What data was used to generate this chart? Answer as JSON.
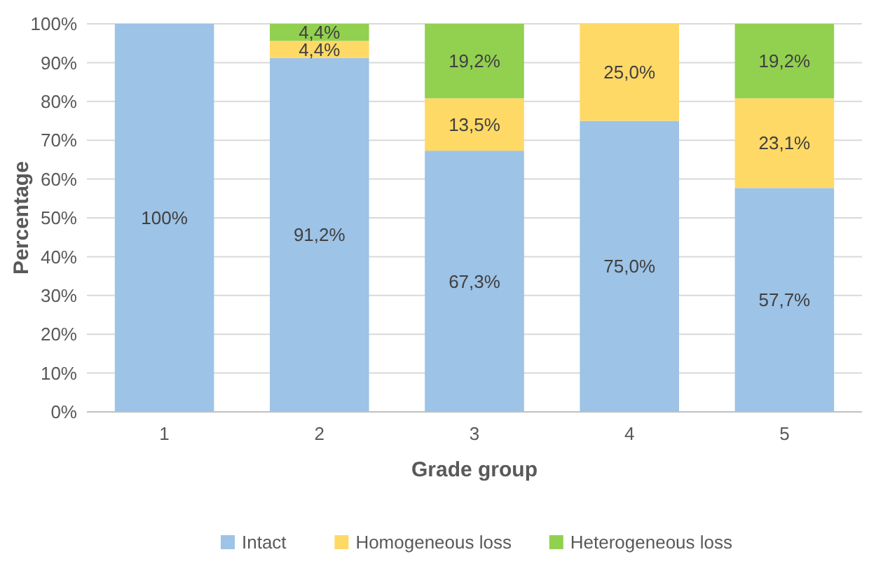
{
  "chart_data": {
    "type": "bar",
    "stacked": true,
    "xlabel": "Grade group",
    "ylabel": "Percentage",
    "categories": [
      "1",
      "2",
      "3",
      "4",
      "5"
    ],
    "series": [
      {
        "name": "Intact",
        "color": "#9dc3e6",
        "values": [
          100,
          91.2,
          67.3,
          75.0,
          57.7
        ],
        "value_labels": [
          "100%",
          "91,2%",
          "67,3%",
          "75,0%",
          "57,7%"
        ]
      },
      {
        "name": "Homogeneous loss",
        "color": "#ffd966",
        "values": [
          null,
          4.4,
          13.5,
          25.0,
          23.1
        ],
        "value_labels": [
          null,
          "4,4%",
          "13,5%",
          "25,0%",
          "23,1%"
        ]
      },
      {
        "name": "Heterogeneous loss",
        "color": "#92d050",
        "values": [
          null,
          4.4,
          19.2,
          null,
          19.2
        ],
        "value_labels": [
          null,
          "4,4%",
          "19,2%",
          null,
          "19,2%"
        ]
      }
    ],
    "ylim": [
      0,
      100
    ],
    "yticks": [
      {
        "value": 0,
        "label": "0%"
      },
      {
        "value": 10,
        "label": "10%"
      },
      {
        "value": 20,
        "label": "20%"
      },
      {
        "value": 30,
        "label": "30%"
      },
      {
        "value": 40,
        "label": "40%"
      },
      {
        "value": 50,
        "label": "50%"
      },
      {
        "value": 60,
        "label": "60%"
      },
      {
        "value": 70,
        "label": "70%"
      },
      {
        "value": 80,
        "label": "80%"
      },
      {
        "value": 90,
        "label": "90%"
      },
      {
        "value": 100,
        "label": "100%"
      }
    ],
    "grid": "y",
    "legend": "bottom"
  }
}
